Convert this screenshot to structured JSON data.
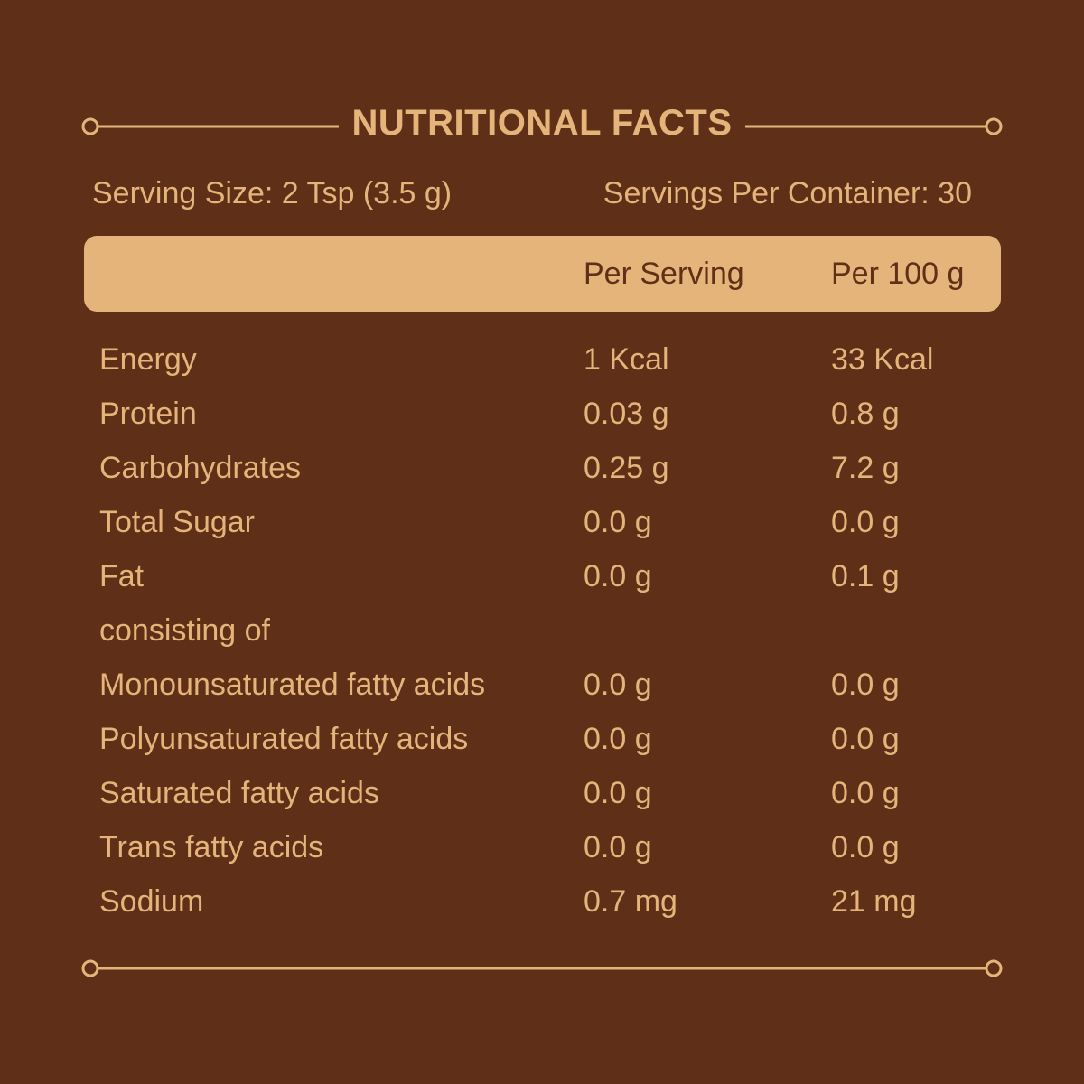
{
  "header": {
    "title": "NUTRITIONAL FACTS"
  },
  "serving": {
    "size": "Serving Size: 2 Tsp (3.5 g)",
    "per_container": "Servings Per Container: 30"
  },
  "table": {
    "columns": [
      "",
      "Per Serving",
      "Per 100 g"
    ],
    "rows": [
      {
        "label": "Energy",
        "per_serving": "1 Kcal",
        "per_100g": "33 Kcal"
      },
      {
        "label": "Protein",
        "per_serving": "0.03 g",
        "per_100g": "0.8 g"
      },
      {
        "label": "Carbohydrates",
        "per_serving": "0.25 g",
        "per_100g": "7.2 g"
      },
      {
        "label": "Total Sugar",
        "per_serving": "0.0 g",
        "per_100g": "0.0 g"
      },
      {
        "label": "Fat",
        "per_serving": "0.0 g",
        "per_100g": "0.1 g"
      },
      {
        "label": "consisting of",
        "per_serving": "",
        "per_100g": ""
      },
      {
        "label": "Monounsaturated fatty acids",
        "per_serving": "0.0 g",
        "per_100g": "0.0 g"
      },
      {
        "label": "Polyunsaturated fatty acids",
        "per_serving": "0.0 g",
        "per_100g": "0.0 g"
      },
      {
        "label": "Saturated fatty acids",
        "per_serving": "0.0 g",
        "per_100g": "0.0 g"
      },
      {
        "label": "Trans fatty acids",
        "per_serving": "0.0 g",
        "per_100g": "0.0 g"
      },
      {
        "label": "Sodium",
        "per_serving": "0.7 mg",
        "per_100g": "21 mg"
      }
    ]
  },
  "colors": {
    "background": "#5f2f17",
    "accent": "#e4b47a"
  }
}
